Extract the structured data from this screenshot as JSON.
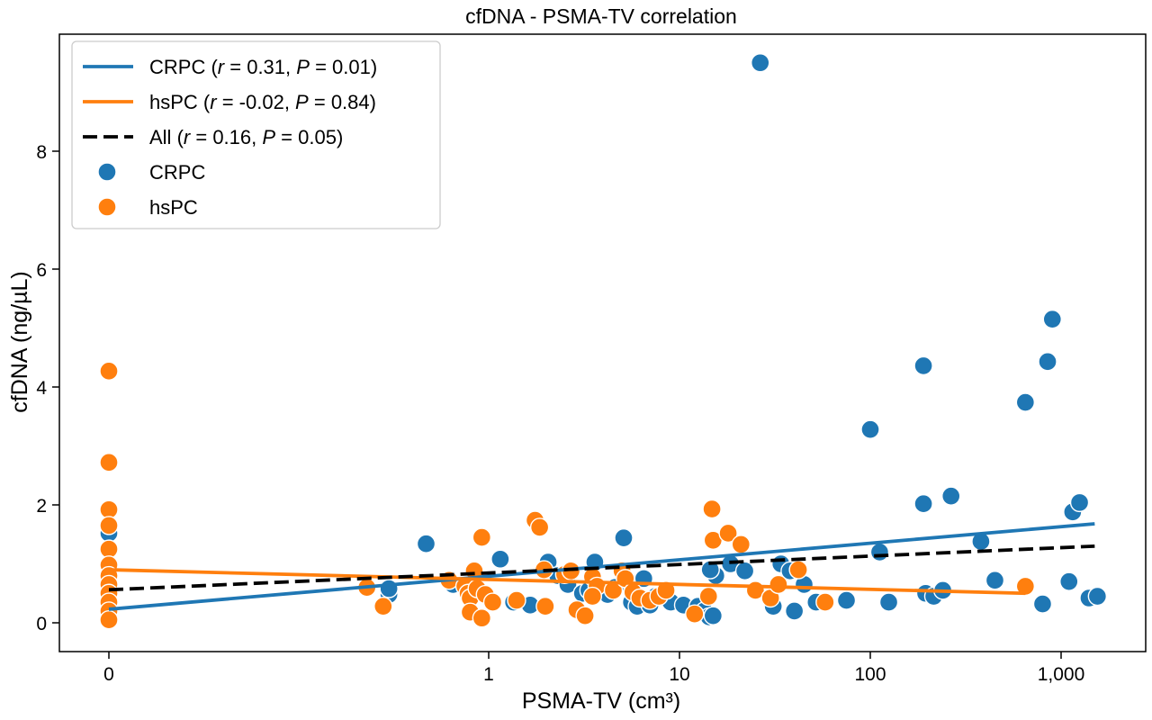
{
  "chart_data": {
    "type": "scatter",
    "title": "cfDNA - PSMA-TV correlation",
    "xlabel": "PSMA-TV (cm³)",
    "ylabel": "cfDNA (ng/µL)",
    "x_scale": "symlog",
    "xlim": [
      0,
      2200
    ],
    "ylim": [
      -0.45,
      9.85
    ],
    "x_ticks": [
      {
        "value": 0,
        "label": "0"
      },
      {
        "value": 1,
        "label": "1"
      },
      {
        "value": 10,
        "label": "10"
      },
      {
        "value": 100,
        "label": "100"
      },
      {
        "value": 1000,
        "label": "1,000"
      }
    ],
    "y_ticks": [
      {
        "value": 0,
        "label": "0"
      },
      {
        "value": 2,
        "label": "2"
      },
      {
        "value": 4,
        "label": "4"
      },
      {
        "value": 6,
        "label": "6"
      },
      {
        "value": 8,
        "label": "8"
      }
    ],
    "grid": false,
    "legend_position": "top-left",
    "colors": {
      "crpc": "#1f77b4",
      "hspc": "#ff7f0e",
      "all": "#000000"
    },
    "legend": [
      {
        "kind": "line",
        "series": "crpc",
        "name": "CRPC",
        "r": "0.31",
        "p": "0.01"
      },
      {
        "kind": "line",
        "series": "hspc",
        "name": "hsPC",
        "r": "-0.02",
        "p": "0.84"
      },
      {
        "kind": "dashed",
        "series": "all",
        "name": "All",
        "r": "0.16",
        "p": "0.05"
      },
      {
        "kind": "marker",
        "series": "crpc",
        "name": "CRPC"
      },
      {
        "kind": "marker",
        "series": "hspc",
        "name": "hsPC"
      }
    ],
    "lines": [
      {
        "series": "crpc",
        "style": "solid",
        "points": [
          [
            0,
            0.23
          ],
          [
            1500,
            1.68
          ]
        ]
      },
      {
        "series": "hspc",
        "style": "solid",
        "points": [
          [
            0,
            0.9
          ],
          [
            650,
            0.5
          ]
        ]
      },
      {
        "series": "all",
        "style": "dashed",
        "points": [
          [
            0,
            0.56
          ],
          [
            1500,
            1.3
          ]
        ]
      }
    ],
    "series": [
      {
        "name": "CRPC",
        "key": "crpc",
        "points": [
          [
            0,
            1.52
          ],
          [
            0,
            1.0
          ],
          [
            0,
            0.85
          ],
          [
            0,
            0.6
          ],
          [
            0,
            0.45
          ],
          [
            0,
            0.3
          ],
          [
            0,
            0.2
          ],
          [
            0,
            0.1
          ],
          [
            0.3,
            0.48
          ],
          [
            0.3,
            0.58
          ],
          [
            0.47,
            1.34
          ],
          [
            0.65,
            0.65
          ],
          [
            1.15,
            1.08
          ],
          [
            1.35,
            0.35
          ],
          [
            1.65,
            0.3
          ],
          [
            2.05,
            1.03
          ],
          [
            2.3,
            0.8
          ],
          [
            2.6,
            0.65
          ],
          [
            3.1,
            0.5
          ],
          [
            3.35,
            0.55
          ],
          [
            3.6,
            1.03
          ],
          [
            4.2,
            0.48
          ],
          [
            4.6,
            0.6
          ],
          [
            5.1,
            1.44
          ],
          [
            5.6,
            0.35
          ],
          [
            6.0,
            0.28
          ],
          [
            6.5,
            0.75
          ],
          [
            7.0,
            0.3
          ],
          [
            7.5,
            0.45
          ],
          [
            9.0,
            0.35
          ],
          [
            10.5,
            0.3
          ],
          [
            12.5,
            0.28
          ],
          [
            13.5,
            0.2
          ],
          [
            14.3,
            0.1
          ],
          [
            15.0,
            0.12
          ],
          [
            15.5,
            0.8
          ],
          [
            14.5,
            0.9
          ],
          [
            18.5,
            1.0
          ],
          [
            22.0,
            0.88
          ],
          [
            26.5,
            9.5
          ],
          [
            31.0,
            0.28
          ],
          [
            34.0,
            1.0
          ],
          [
            38.0,
            0.88
          ],
          [
            40.0,
            0.2
          ],
          [
            45.0,
            0.65
          ],
          [
            52.0,
            0.35
          ],
          [
            75.0,
            0.38
          ],
          [
            100.0,
            3.28
          ],
          [
            112.0,
            1.2
          ],
          [
            125.0,
            0.35
          ],
          [
            190.0,
            4.36
          ],
          [
            190.0,
            2.02
          ],
          [
            195.0,
            0.5
          ],
          [
            215.0,
            0.45
          ],
          [
            240.0,
            0.55
          ],
          [
            265.0,
            2.15
          ],
          [
            380.0,
            1.38
          ],
          [
            450.0,
            0.72
          ],
          [
            650.0,
            3.74
          ],
          [
            800.0,
            0.32
          ],
          [
            850.0,
            4.43
          ],
          [
            900.0,
            5.15
          ],
          [
            1100.0,
            0.7
          ],
          [
            1150.0,
            1.88
          ],
          [
            1250.0,
            2.04
          ],
          [
            1400.0,
            0.42
          ],
          [
            1550.0,
            0.45
          ]
        ]
      },
      {
        "name": "hsPC",
        "key": "hspc",
        "points": [
          [
            0,
            4.27
          ],
          [
            0,
            2.72
          ],
          [
            0,
            1.92
          ],
          [
            0,
            1.65
          ],
          [
            0,
            1.25
          ],
          [
            0,
            0.98
          ],
          [
            0,
            0.8
          ],
          [
            0,
            0.65
          ],
          [
            0,
            0.5
          ],
          [
            0,
            0.35
          ],
          [
            0,
            0.2
          ],
          [
            0,
            0.05
          ],
          [
            0.23,
            0.6
          ],
          [
            0.28,
            0.28
          ],
          [
            0.62,
            0.72
          ],
          [
            0.75,
            0.62
          ],
          [
            0.78,
            0.5
          ],
          [
            0.8,
            0.42
          ],
          [
            0.8,
            0.18
          ],
          [
            0.84,
            0.88
          ],
          [
            0.87,
            0.58
          ],
          [
            0.92,
            1.45
          ],
          [
            0.92,
            0.08
          ],
          [
            0.96,
            0.48
          ],
          [
            1.05,
            0.35
          ],
          [
            1.4,
            0.38
          ],
          [
            1.75,
            1.74
          ],
          [
            1.85,
            1.62
          ],
          [
            1.95,
            0.9
          ],
          [
            1.98,
            0.28
          ],
          [
            2.5,
            0.82
          ],
          [
            2.7,
            0.88
          ],
          [
            2.9,
            0.22
          ],
          [
            3.2,
            0.12
          ],
          [
            3.5,
            0.78
          ],
          [
            3.7,
            0.62
          ],
          [
            3.5,
            0.45
          ],
          [
            4.5,
            0.55
          ],
          [
            5.0,
            0.88
          ],
          [
            5.2,
            0.75
          ],
          [
            5.7,
            0.52
          ],
          [
            6.2,
            0.42
          ],
          [
            7.0,
            0.38
          ],
          [
            7.8,
            0.45
          ],
          [
            8.5,
            0.55
          ],
          [
            12.0,
            0.15
          ],
          [
            14.2,
            0.45
          ],
          [
            14.8,
            1.93
          ],
          [
            15.0,
            1.4
          ],
          [
            18.0,
            1.52
          ],
          [
            21.0,
            1.33
          ],
          [
            25.0,
            0.55
          ],
          [
            30.0,
            0.42
          ],
          [
            33.0,
            0.65
          ],
          [
            42.0,
            0.9
          ],
          [
            58.0,
            0.35
          ],
          [
            650.0,
            0.62
          ]
        ]
      }
    ]
  }
}
